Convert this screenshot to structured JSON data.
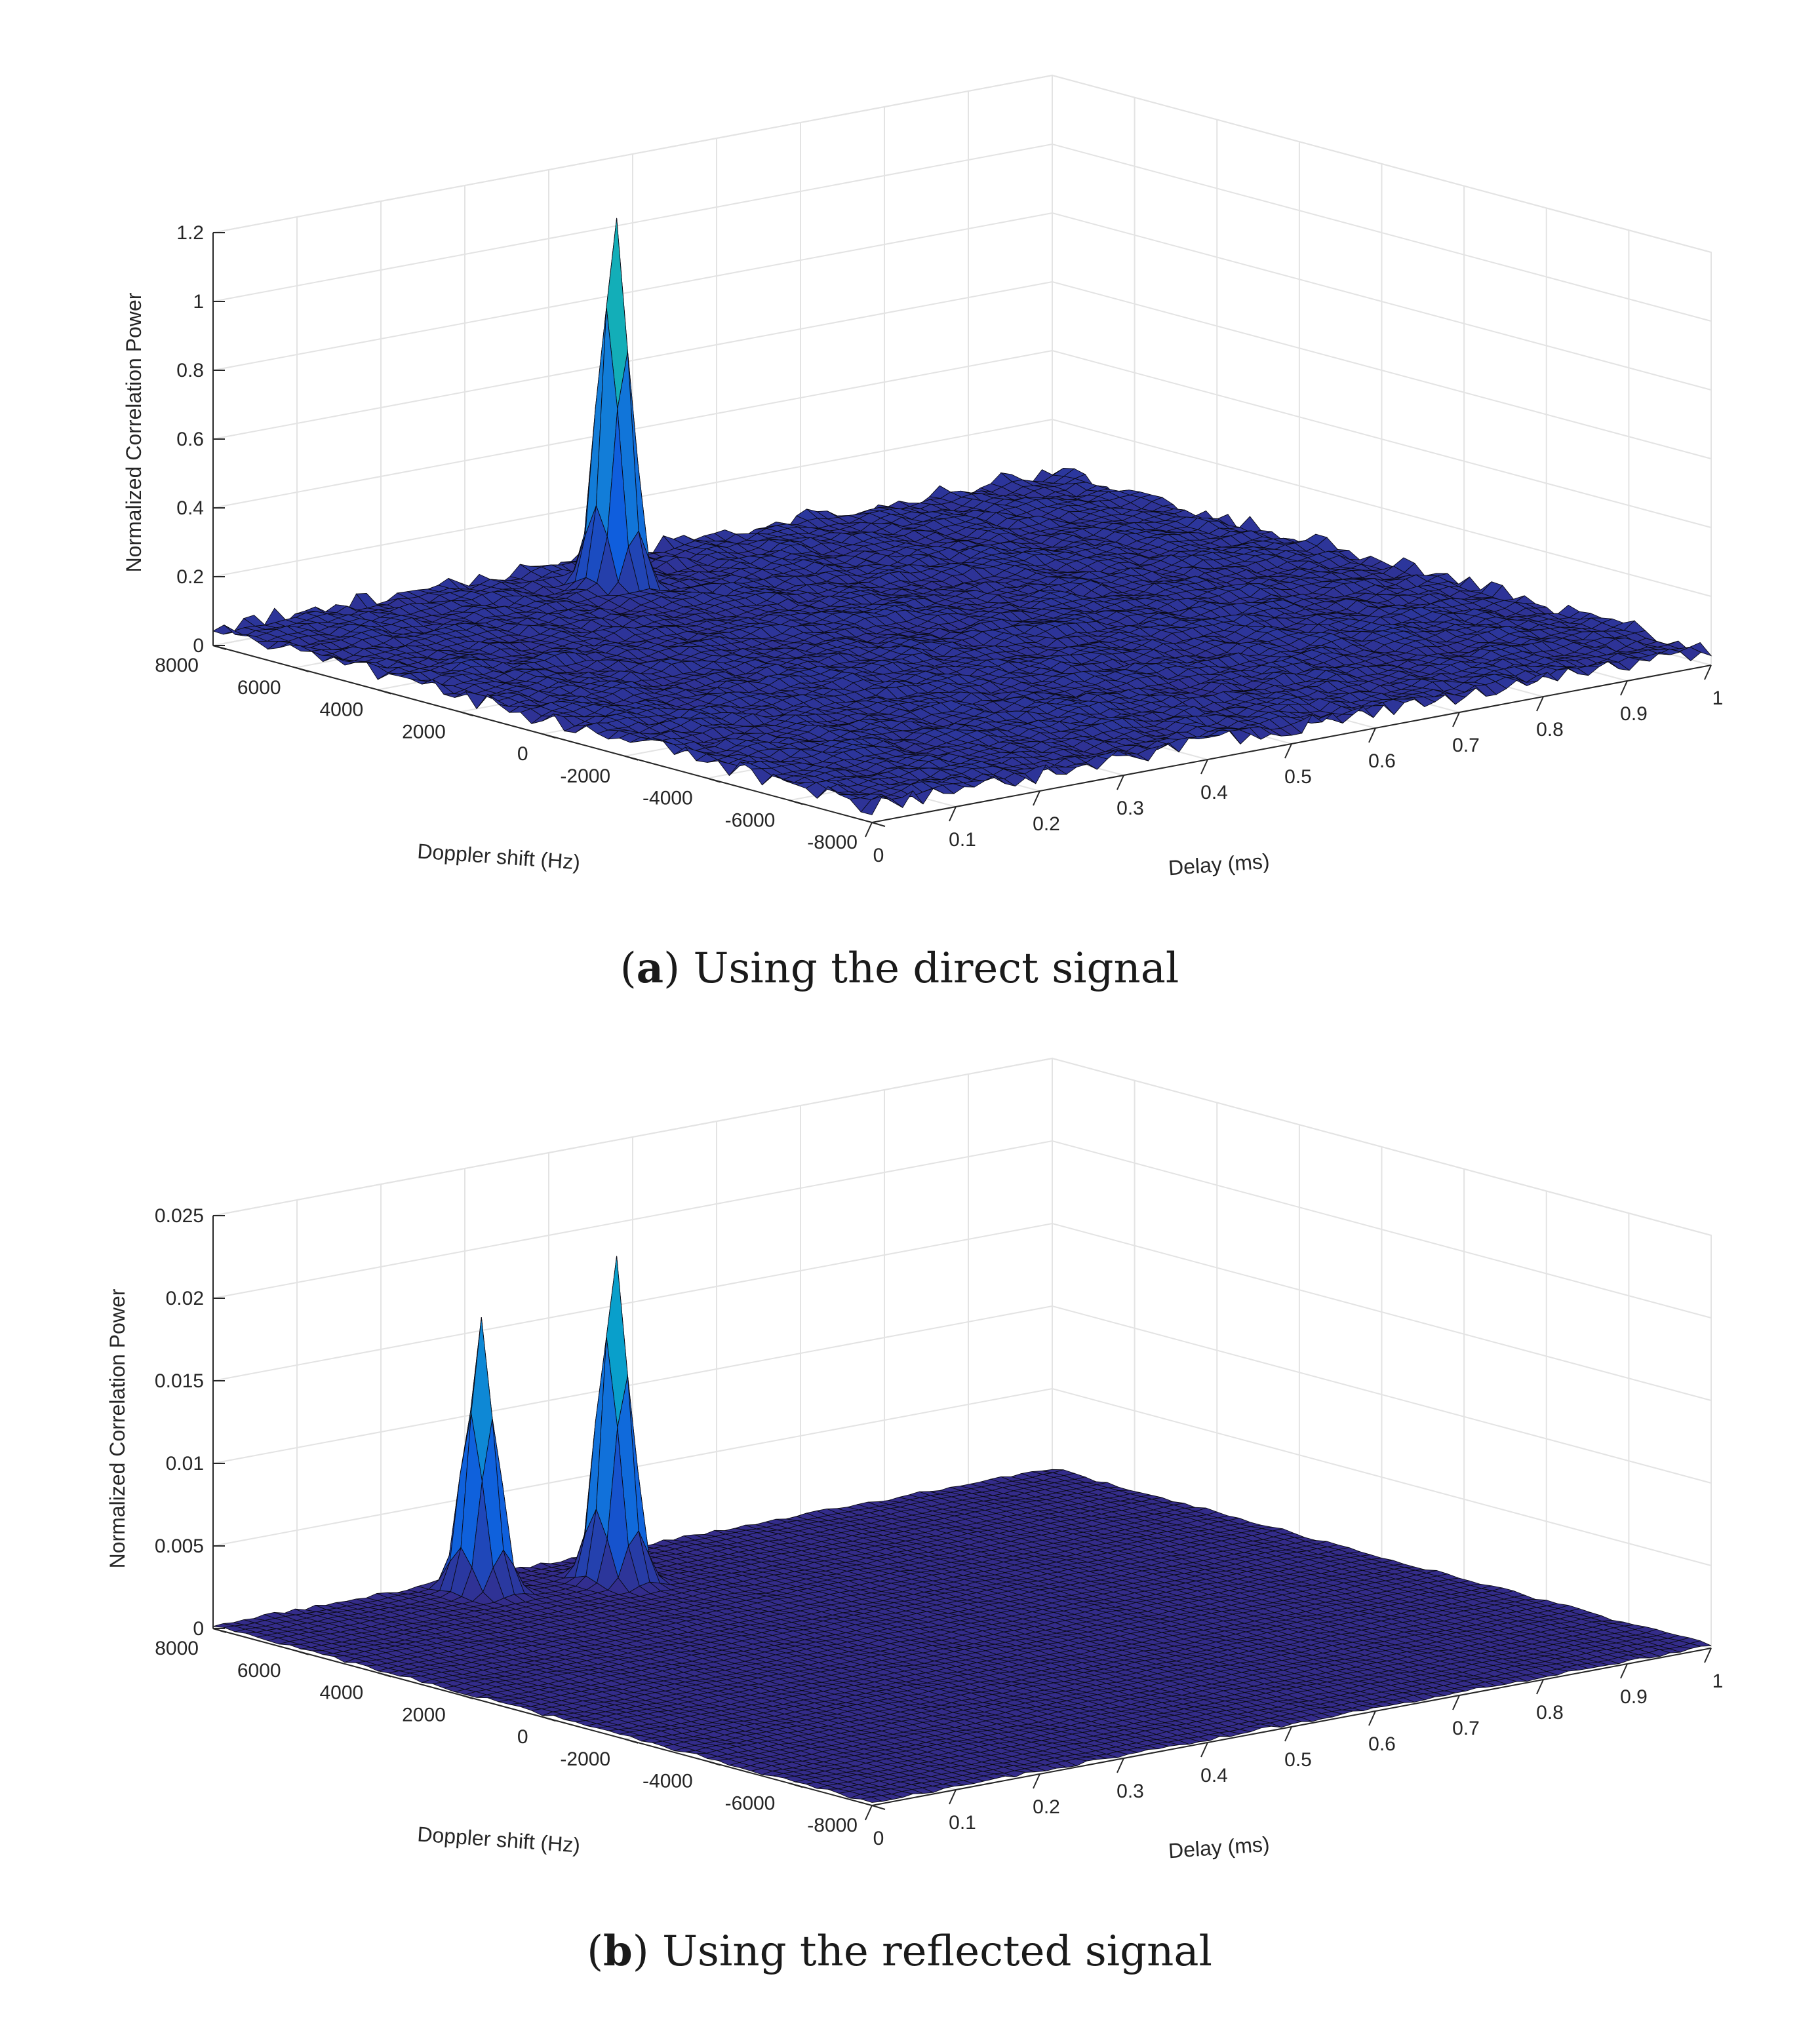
{
  "captions": [
    {
      "letter": "a",
      "text": "Using the direct signal"
    },
    {
      "letter": "b",
      "text": "Using the reflected signal"
    }
  ],
  "chart_data": [
    {
      "type": "surface",
      "xlabel": "Delay (ms)",
      "ylabel": "Doppler shift (Hz)",
      "zlabel": "Normalized Correlation Power",
      "xlim": [
        0,
        1
      ],
      "ylim": [
        -8000,
        8000
      ],
      "zlim": [
        0,
        1.2
      ],
      "x_ticks": [
        "0",
        "0.1",
        "0.2",
        "0.3",
        "0.4",
        "0.5",
        "0.6",
        "0.7",
        "0.8",
        "0.9",
        "1"
      ],
      "y_ticks": [
        "8000",
        "6000",
        "4000",
        "2000",
        "0",
        "-2000",
        "-4000",
        "-6000",
        "-8000"
      ],
      "z_ticks": [
        "0",
        "0.2",
        "0.4",
        "0.6",
        "0.8",
        "1",
        "1.2"
      ],
      "grid": true,
      "colormap": "parula",
      "noise_level": 0.05,
      "peaks": [
        {
          "delay_ms": 0.4,
          "doppler_hz": 6400,
          "power": 1.08
        }
      ]
    },
    {
      "type": "surface",
      "xlabel": "Delay (ms)",
      "ylabel": "Doppler shift (Hz)",
      "zlabel": "Normalized Correlation Power",
      "xlim": [
        0,
        1
      ],
      "ylim": [
        -8000,
        8000
      ],
      "zlim": [
        0,
        0.025
      ],
      "x_ticks": [
        "0",
        "0.1",
        "0.2",
        "0.3",
        "0.4",
        "0.5",
        "0.6",
        "0.7",
        "0.8",
        "0.9",
        "1"
      ],
      "y_ticks": [
        "8000",
        "6000",
        "4000",
        "2000",
        "0",
        "-2000",
        "-4000",
        "-6000",
        "-8000"
      ],
      "z_ticks": [
        "0",
        "0.005",
        "0.01",
        "0.015",
        "0.02",
        "0.025"
      ],
      "grid": true,
      "colormap": "parula",
      "noise_level": 0.009,
      "peaks": [
        {
          "delay_ms": 0.4,
          "doppler_hz": 6400,
          "power": 0.02
        },
        {
          "delay_ms": 0.28,
          "doppler_hz": 7200,
          "power": 0.0165
        }
      ]
    }
  ]
}
